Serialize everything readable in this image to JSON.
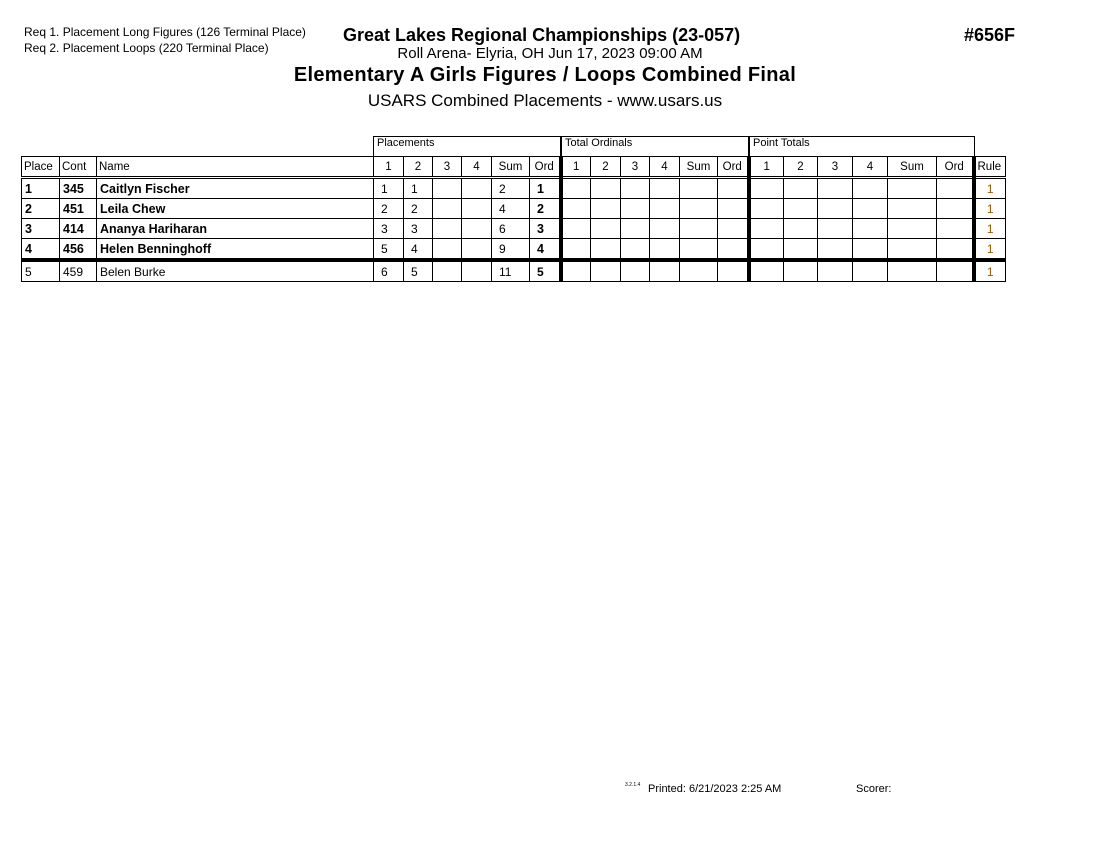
{
  "requirements": [
    "Req  1.  Placement Long Figures (126 Terminal Place)",
    "Req  2.  Placement Loops (220 Terminal Place)"
  ],
  "header": {
    "title": "Great Lakes Regional Championships (23-057)",
    "event_code": "#656F",
    "location": "Roll Arena- Elyria, OH  Jun 17, 2023  09:00 AM",
    "event_name": "Elementary A Girls Figures / Loops Combined Final",
    "subtitle": "USARS Combined Placements - www.usars.us"
  },
  "table": {
    "groups": {
      "placements": "Placements",
      "total_ordinals": "Total Ordinals",
      "point_totals": "Point Totals"
    },
    "columns": [
      "Place",
      "Cont",
      "Name",
      "1",
      "2",
      "3",
      "4",
      "Sum",
      "Ord",
      "1",
      "2",
      "3",
      "4",
      "Sum",
      "Ord",
      "1",
      "2",
      "3",
      "4",
      "Sum",
      "Ord",
      "Rule"
    ],
    "rows": [
      {
        "place": "1",
        "cont": "345",
        "name": "Caitlyn Fischer",
        "p1": "1",
        "p2": "1",
        "sum": "2",
        "ord": "1",
        "rule": "1"
      },
      {
        "place": "2",
        "cont": "451",
        "name": "Leila Chew",
        "p1": "2",
        "p2": "2",
        "sum": "4",
        "ord": "2",
        "rule": "1"
      },
      {
        "place": "3",
        "cont": "414",
        "name": "Ananya Hariharan",
        "p1": "3",
        "p2": "3",
        "sum": "6",
        "ord": "3",
        "rule": "1"
      },
      {
        "place": "4",
        "cont": "456",
        "name": "Helen Benninghoff",
        "p1": "5",
        "p2": "4",
        "sum": "9",
        "ord": "4",
        "rule": "1"
      },
      {
        "place": "5",
        "cont": "459",
        "name": "Belen Burke",
        "p1": "6",
        "p2": "5",
        "sum": "11",
        "ord": "5",
        "rule": "1"
      }
    ]
  },
  "footer": {
    "version": "3.2.1.4",
    "printed": "Printed:  6/21/2023  2:25 AM",
    "scorer": "Scorer:"
  },
  "colors": {
    "rule_text": "#9a5a00"
  }
}
